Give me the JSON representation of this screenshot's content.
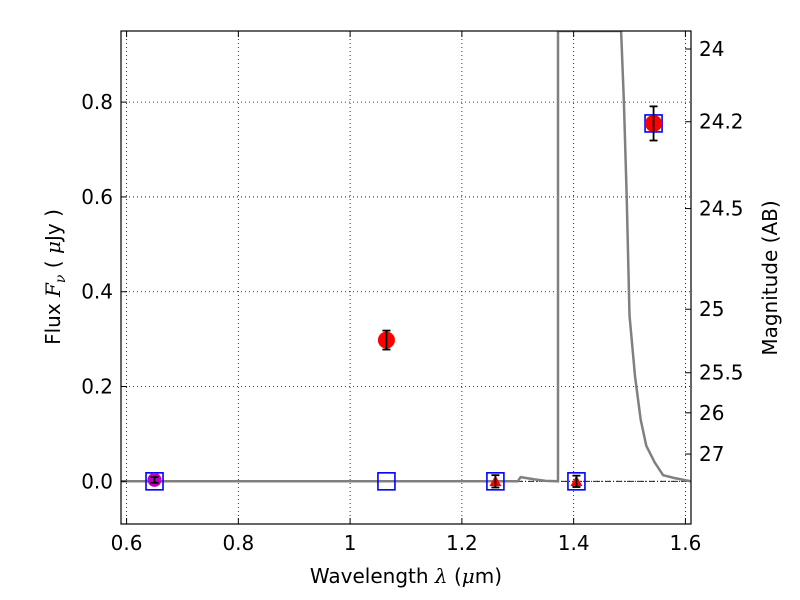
{
  "chart_data": {
    "type": "scatter",
    "xlabel_prefix": "Wavelength",
    "xlabel_lambda": "λ",
    "xlabel_unit_open": "(",
    "xlabel_unit_mu": "μ",
    "xlabel_unit_rest": "m)",
    "ylabel_prefix": "Flux",
    "ylabel_F": "F",
    "ylabel_nu": "ν",
    "ylabel_unit_open": "(",
    "ylabel_unit_mu": "μ",
    "ylabel_unit_rest": "Jy )",
    "y2label": "Magnitude (AB)",
    "xlim": [
      0.59,
      1.61
    ],
    "ylim": [
      -0.09,
      0.95
    ],
    "grid": true,
    "x_ticks": [
      {
        "value": 0.6,
        "label": "0.6"
      },
      {
        "value": 0.8,
        "label": "0.8"
      },
      {
        "value": 1.0,
        "label": "1"
      },
      {
        "value": 1.2,
        "label": "1.2"
      },
      {
        "value": 1.4,
        "label": "1.4"
      },
      {
        "value": 1.6,
        "label": "1.6"
      }
    ],
    "y_ticks": [
      {
        "value": 0.0,
        "label": "0.0"
      },
      {
        "value": 0.2,
        "label": "0.2"
      },
      {
        "value": 0.4,
        "label": "0.4"
      },
      {
        "value": 0.6,
        "label": "0.6"
      },
      {
        "value": 0.8,
        "label": "0.8"
      }
    ],
    "mag_ticks": [
      {
        "value": 24,
        "label": "24"
      },
      {
        "value": 24.2,
        "label": "24.2"
      },
      {
        "value": 24.5,
        "label": "24.5"
      },
      {
        "value": 25,
        "label": "25"
      },
      {
        "value": 25.5,
        "label": "25.5"
      },
      {
        "value": 26,
        "label": "26"
      },
      {
        "value": 27,
        "label": "27"
      }
    ],
    "series": [
      {
        "marker": "circle",
        "color": "#ff0000",
        "points": [
          {
            "x": 1.065,
            "y": 0.298,
            "err": 0.02
          },
          {
            "x": 1.543,
            "y": 0.755,
            "err": 0.036
          }
        ]
      },
      {
        "marker": "circle",
        "color": "#bf00bf",
        "points": [
          {
            "x": 0.65,
            "y": 0.003,
            "err": 0.006
          }
        ]
      },
      {
        "marker": "triangle",
        "color": "#ff0000",
        "points": [
          {
            "x": 1.26,
            "y": 0.0,
            "err": 0.013
          },
          {
            "x": 1.405,
            "y": 0.0,
            "err": 0.012
          }
        ]
      },
      {
        "marker": "square-open",
        "color": "#0000ff",
        "points": [
          {
            "x": 0.65,
            "y": 0.0
          },
          {
            "x": 1.065,
            "y": 0.0
          },
          {
            "x": 1.26,
            "y": 0.0
          },
          {
            "x": 1.405,
            "y": 0.0
          },
          {
            "x": 1.543,
            "y": 0.755
          }
        ]
      },
      {
        "marker": "line",
        "color": "#808080",
        "points": [
          {
            "x": 0.59,
            "y": 0.0
          },
          {
            "x": 1.3,
            "y": 0.0
          },
          {
            "x": 1.305,
            "y": 0.009
          },
          {
            "x": 1.33,
            "y": 0.004
          },
          {
            "x": 1.35,
            "y": 0.001
          },
          {
            "x": 1.372,
            "y": 0.0
          },
          {
            "x": 1.372,
            "y": 0.95
          },
          {
            "x": 1.485,
            "y": 0.95
          },
          {
            "x": 1.49,
            "y": 0.8
          },
          {
            "x": 1.495,
            "y": 0.6
          },
          {
            "x": 1.5,
            "y": 0.35
          },
          {
            "x": 1.51,
            "y": 0.22
          },
          {
            "x": 1.52,
            "y": 0.13
          },
          {
            "x": 1.53,
            "y": 0.075
          },
          {
            "x": 1.545,
            "y": 0.04
          },
          {
            "x": 1.56,
            "y": 0.013
          },
          {
            "x": 1.58,
            "y": 0.007
          },
          {
            "x": 1.61,
            "y": 0.0
          }
        ]
      }
    ]
  }
}
